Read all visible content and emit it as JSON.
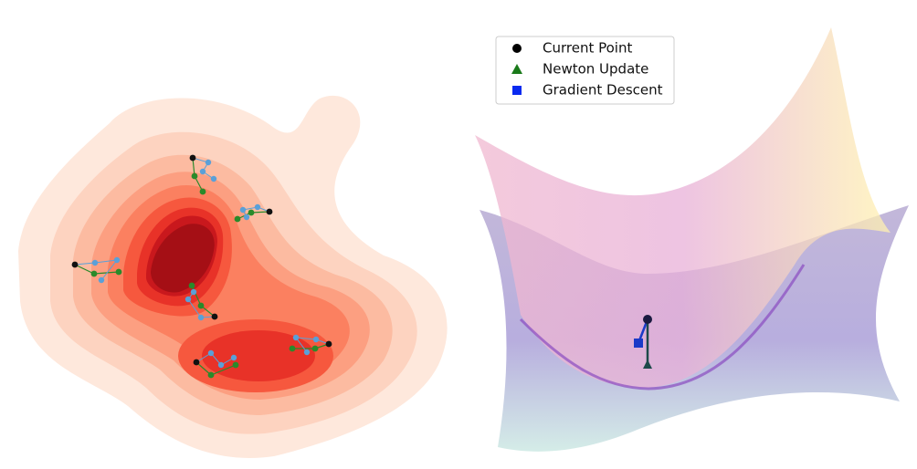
{
  "legend": {
    "items": [
      {
        "label": "Current Point"
      },
      {
        "label": "Newton Update"
      },
      {
        "label": "Gradient Descent"
      }
    ]
  }
}
